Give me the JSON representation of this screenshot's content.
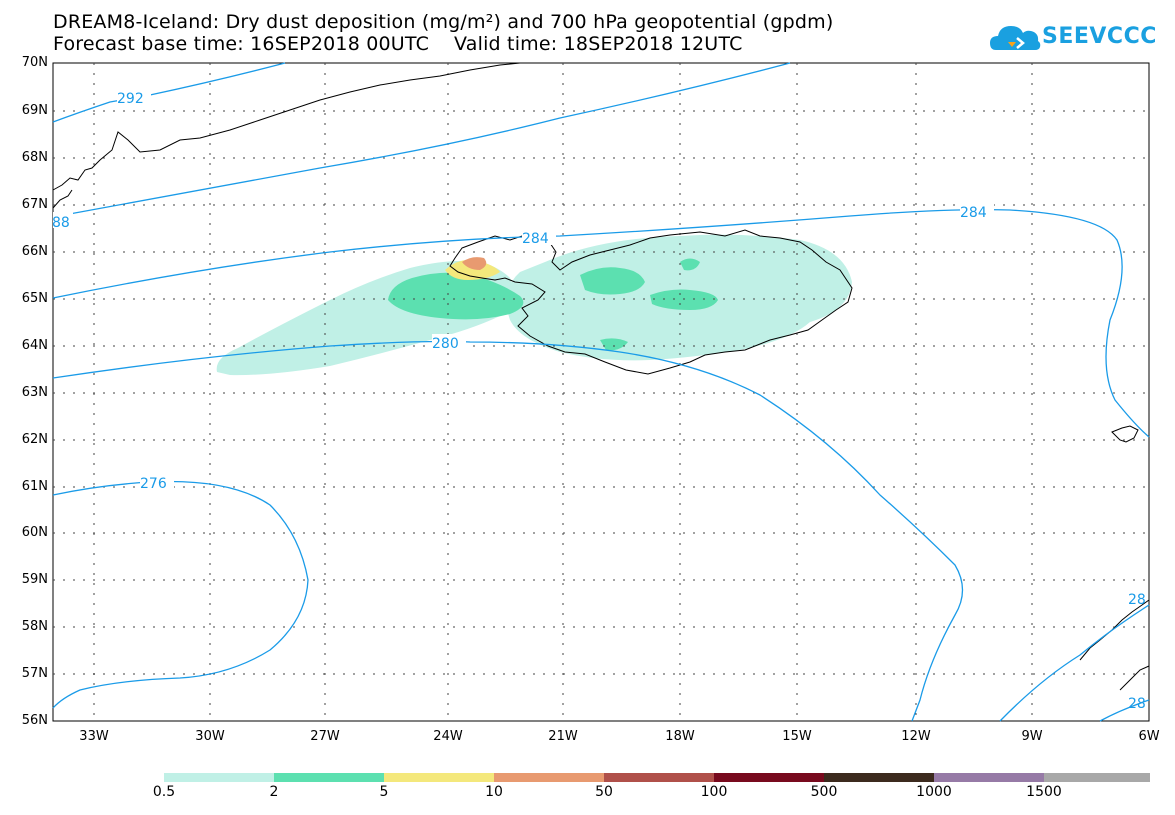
{
  "title": {
    "line1": "DREAM8-Iceland: Dry dust deposition (mg/m²) and 700 hPa geopotential (gpdm)",
    "line2": "Forecast base time: 16SEP2018 00UTC    Valid time: 18SEP2018 12UTC"
  },
  "logo": {
    "text": "SEEVCCC",
    "icon": "cloud-icon",
    "color": "#1aa0e0"
  },
  "map": {
    "lat_labels": [
      "70N",
      "69N",
      "68N",
      "67N",
      "66N",
      "65N",
      "64N",
      "63N",
      "62N",
      "61N",
      "60N",
      "59N",
      "58N",
      "57N",
      "56N"
    ],
    "lon_labels": [
      "33W",
      "30W",
      "27W",
      "24W",
      "21W",
      "18W",
      "15W",
      "12W",
      "9W",
      "6W"
    ],
    "contour_color": "#1a9be8",
    "contour_labels": [
      "292",
      "88",
      "284",
      "284",
      "280",
      "276",
      "28",
      "28"
    ]
  },
  "colorbar": {
    "labels": [
      "0.5",
      "2",
      "5",
      "10",
      "50",
      "100",
      "500",
      "1000",
      "1500"
    ],
    "colors": [
      "#c0f0e6",
      "#5ce0b0",
      "#f4e87c",
      "#e89a70",
      "#b0504a",
      "#780a1e",
      "#3c2a1e",
      "#967aa6",
      "#a8a8a8"
    ]
  }
}
